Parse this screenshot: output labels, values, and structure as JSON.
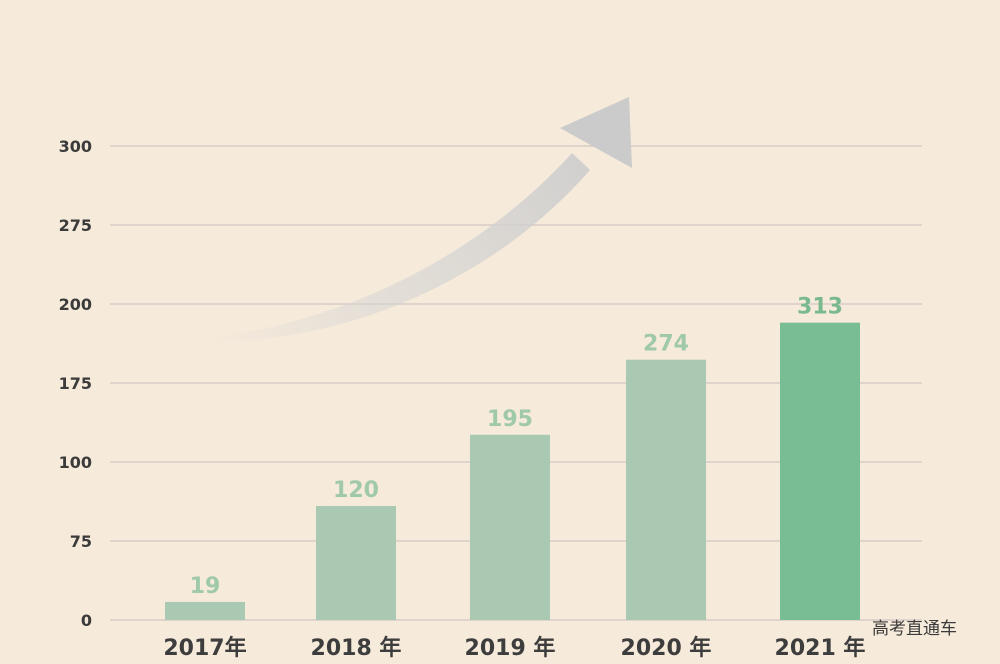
{
  "chart_data": {
    "type": "bar",
    "categories": [
      "2017年",
      "2018 年",
      "2019 年",
      "2020 年",
      "2021 年"
    ],
    "values": [
      19,
      120,
      195,
      274,
      313
    ],
    "y_ticks": [
      "0",
      "75",
      "100",
      "175",
      "200",
      "275",
      "300"
    ],
    "title": "",
    "xlabel": "",
    "ylabel": "",
    "grid": true,
    "colors": {
      "background": "#f6eada",
      "bar": "#a9c9b2",
      "bar_highlight": "#79bd94",
      "value_label": "#9fc9a9",
      "value_label_highlight": "#79b990",
      "gridline": "#cfc6c2",
      "arrow": "#cfcfcf"
    }
  },
  "watermark": "高考直通车"
}
